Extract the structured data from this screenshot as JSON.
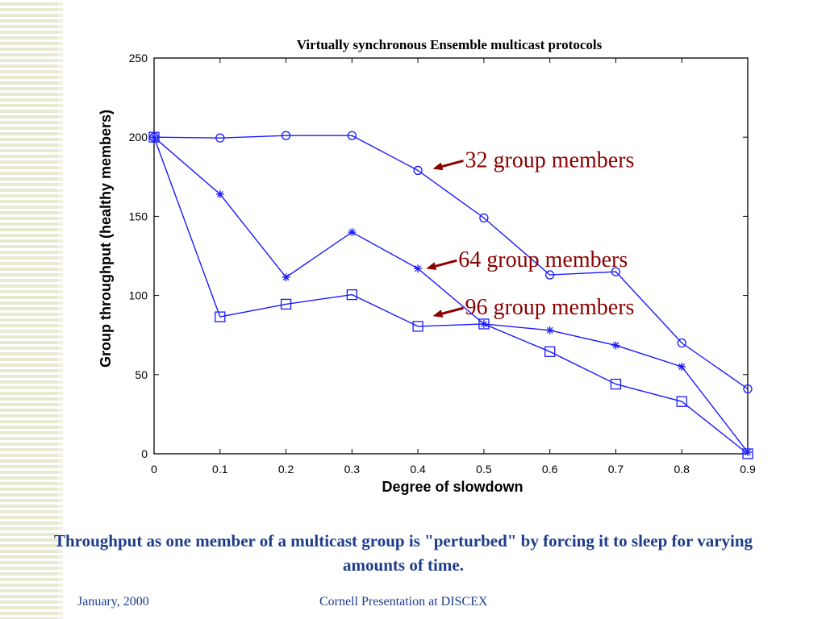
{
  "chart_data": {
    "type": "line",
    "title": "Virtually synchronous Ensemble multicast protocols",
    "xlabel": "Degree of slowdown",
    "ylabel": "Group throughput (healthy members)",
    "x": [
      0,
      0.1,
      0.2,
      0.3,
      0.4,
      0.5,
      0.6,
      0.7,
      0.8,
      0.9
    ],
    "xticks": [
      "0",
      "0.1",
      "0.2",
      "0.3",
      "0.4",
      "0.5",
      "0.6",
      "0.7",
      "0.8",
      "0.9"
    ],
    "yticks": [
      "0",
      "50",
      "100",
      "150",
      "200",
      "250"
    ],
    "xlim": [
      0,
      0.9
    ],
    "ylim": [
      0,
      250
    ],
    "grid": false,
    "series": [
      {
        "marker": "circle",
        "values": [
          200,
          199.5,
          201,
          201,
          179,
          149,
          113,
          115,
          70,
          41
        ]
      },
      {
        "marker": "star",
        "values": [
          200,
          164,
          111.5,
          140,
          117,
          82,
          78,
          68.5,
          55,
          1
        ]
      },
      {
        "marker": "square",
        "values": [
          200,
          86.5,
          94.5,
          100.5,
          80.5,
          82,
          64.5,
          44,
          33,
          0
        ]
      }
    ],
    "annotations": [
      {
        "text": "32 group members",
        "x": 0.42,
        "y": 180
      },
      {
        "text": "64 group members",
        "x": 0.41,
        "y": 117
      },
      {
        "text": "96 group members",
        "x": 0.42,
        "y": 87
      }
    ],
    "colors": {
      "line": "#1a1aff",
      "annotation": "#8b0000"
    }
  },
  "caption": "Throughput as one member of a multicast group is \"perturbed\" by forcing it to sleep for varying amounts of time.",
  "footer": {
    "date": "January, 2000",
    "presentation": "Cornell Presentation at DISCEX"
  }
}
